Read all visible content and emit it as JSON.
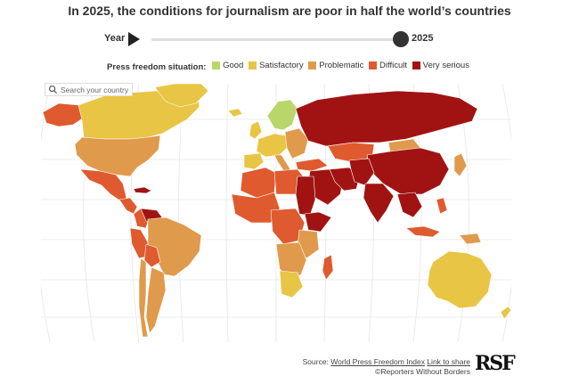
{
  "title": "In 2025, the conditions for journalism are poor in half the world’s countries",
  "timeline": {
    "label": "Year",
    "value": "2025",
    "position": 1.0
  },
  "legend": {
    "title": "Press freedom situation:",
    "items": [
      {
        "label": "Good",
        "color": "#b9d66a"
      },
      {
        "label": "Satisfactory",
        "color": "#e8c544"
      },
      {
        "label": "Problematic",
        "color": "#e09a4c"
      },
      {
        "label": "Difficult",
        "color": "#df5a2e"
      },
      {
        "label": "Very serious",
        "color": "#a11313"
      }
    ]
  },
  "search": {
    "placeholder": "Search your country"
  },
  "source": {
    "prefix": "Source:",
    "link_label": "World Press Freedom Index",
    "share_label": "Link to share",
    "credit": "©Reporters Without Borders"
  },
  "logo": {
    "text": "RSF"
  },
  "colors": {
    "ocean": "#ffffff",
    "graticule": "#e6e6e6",
    "border": "#ffffff"
  }
}
